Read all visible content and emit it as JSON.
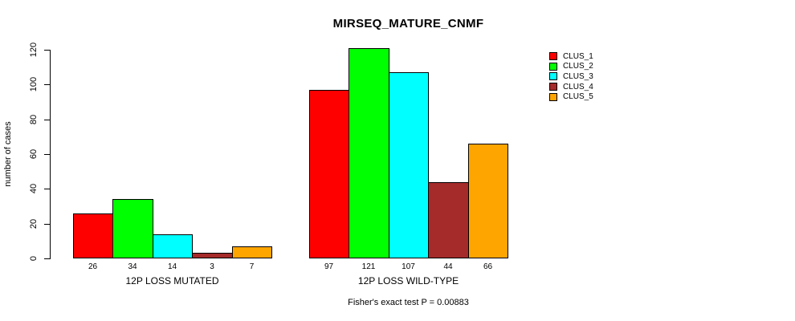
{
  "chart_data": {
    "type": "bar",
    "title": "MIRSEQ_MATURE_CNMF",
    "ylabel": "number of cases",
    "xlabel": "",
    "ylim": [
      0,
      120
    ],
    "yticks": [
      0,
      20,
      40,
      60,
      80,
      100,
      120
    ],
    "grid": false,
    "legend_position": "right",
    "categories": [
      "12P LOSS MUTATED",
      "12P LOSS WILD-TYPE"
    ],
    "series": [
      {
        "name": "CLUS_1",
        "color": "#FF0000",
        "values": [
          26,
          97
        ]
      },
      {
        "name": "CLUS_2",
        "color": "#00FF00",
        "values": [
          34,
          121
        ]
      },
      {
        "name": "CLUS_3",
        "color": "#00FFFF",
        "values": [
          14,
          107
        ]
      },
      {
        "name": "CLUS_4",
        "color": "#A52A2A",
        "values": [
          3,
          44
        ]
      },
      {
        "name": "CLUS_5",
        "color": "#FFA500",
        "values": [
          7,
          66
        ]
      }
    ],
    "bar_value_labels": [
      [
        26,
        34,
        14,
        3,
        7
      ],
      [
        97,
        121,
        107,
        44,
        66
      ]
    ],
    "annotation": "Fisher's exact test P = 0.00883"
  }
}
